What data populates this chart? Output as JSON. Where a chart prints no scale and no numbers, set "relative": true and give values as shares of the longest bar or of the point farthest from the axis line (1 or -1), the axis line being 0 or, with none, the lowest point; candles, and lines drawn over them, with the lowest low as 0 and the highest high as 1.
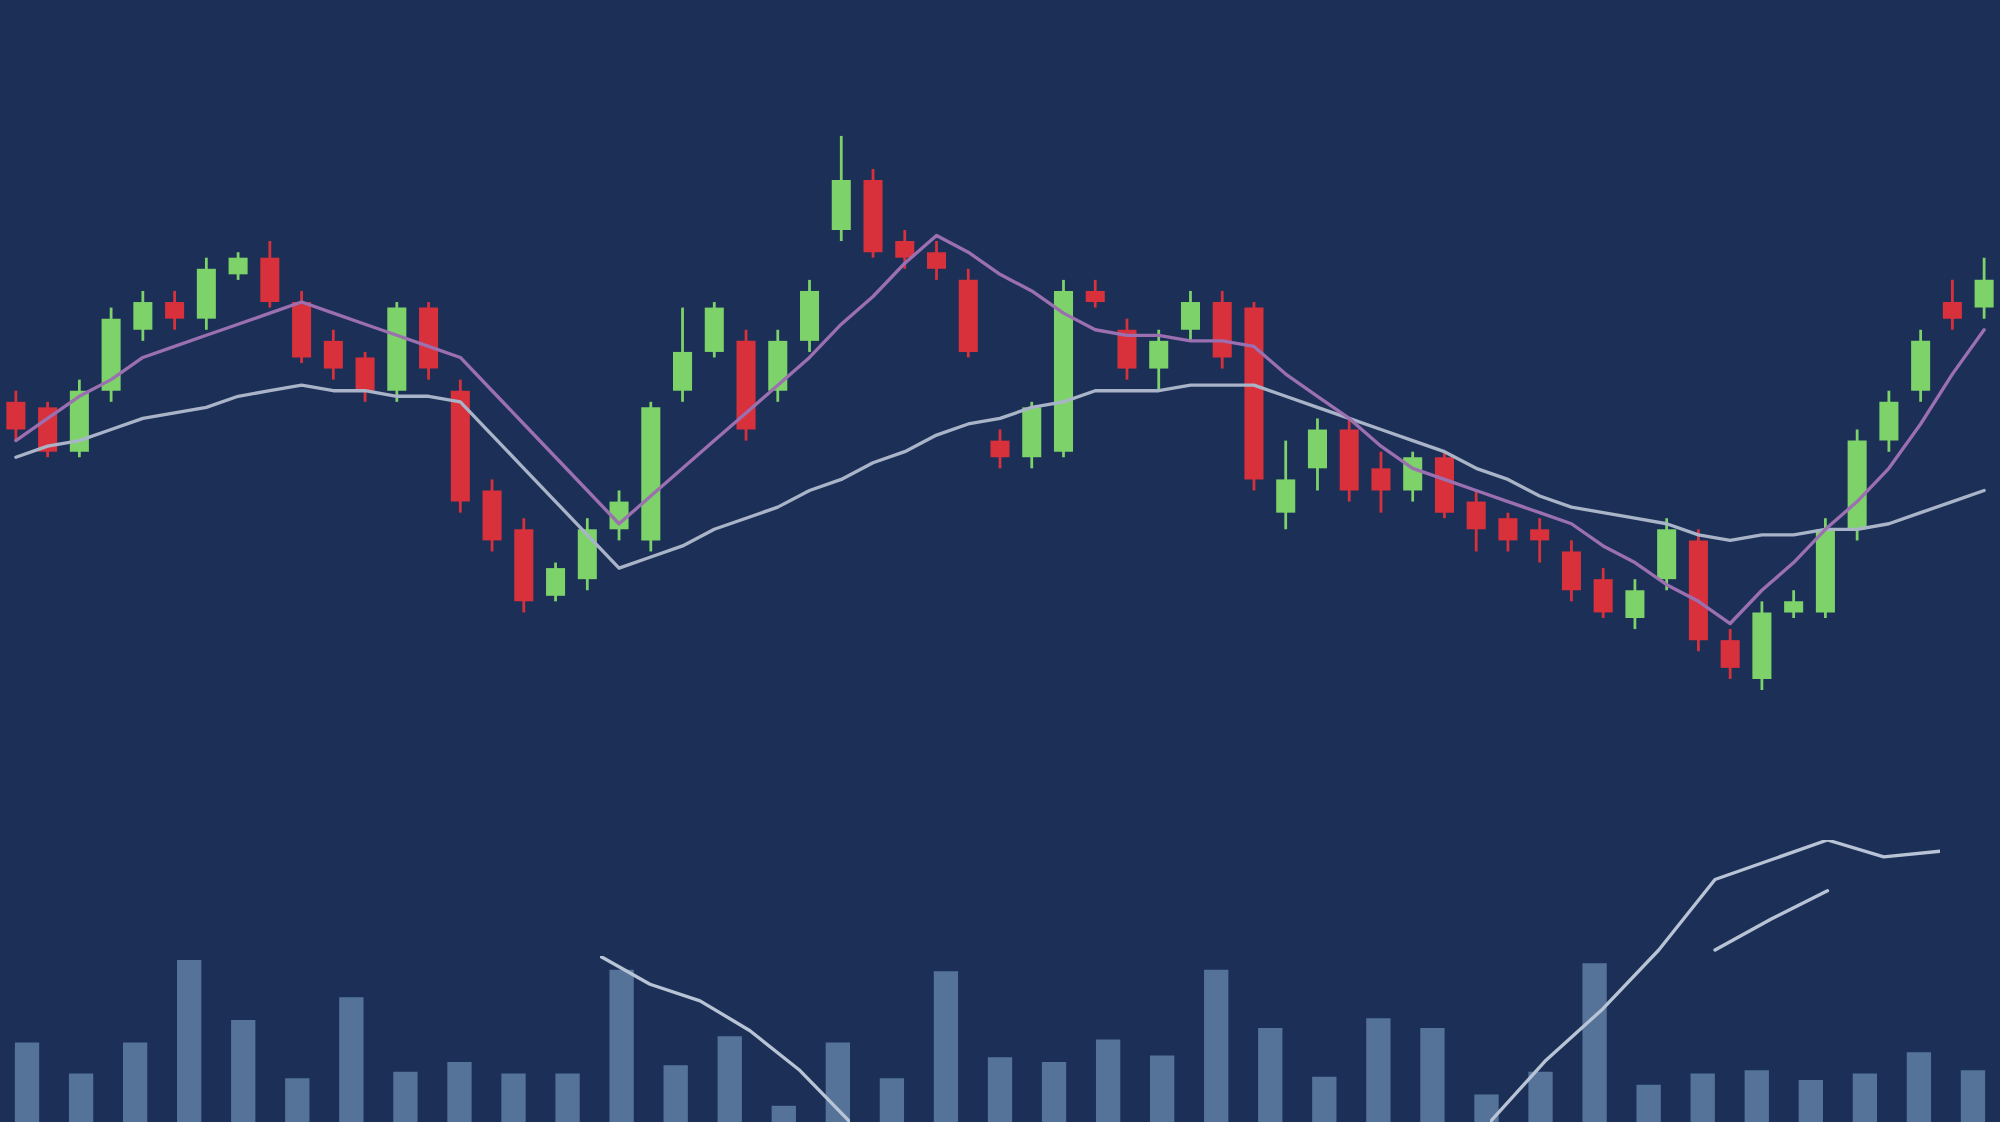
{
  "chart_data": [
    {
      "type": "candlestick",
      "relative": true,
      "categories": [
        null,
        null,
        null,
        null,
        null,
        null,
        null,
        null,
        null,
        null,
        null,
        null,
        null,
        null,
        null,
        null,
        null,
        null,
        null,
        null,
        null,
        null,
        null,
        null,
        null,
        null,
        null,
        null,
        null,
        null,
        null,
        null,
        null,
        null,
        null,
        null,
        null,
        null,
        null,
        null,
        null,
        null,
        null,
        null,
        null,
        null,
        null,
        null,
        null,
        null,
        null,
        null,
        null,
        null,
        null,
        null,
        null,
        null,
        null,
        null,
        null,
        null,
        null
      ],
      "ohlc": [
        [
          0.52,
          0.54,
          0.45,
          0.47
        ],
        [
          0.51,
          0.52,
          0.42,
          0.43
        ],
        [
          0.43,
          0.56,
          0.42,
          0.54
        ],
        [
          0.54,
          0.69,
          0.52,
          0.67
        ],
        [
          0.65,
          0.72,
          0.63,
          0.7
        ],
        [
          0.7,
          0.72,
          0.65,
          0.67
        ],
        [
          0.67,
          0.78,
          0.65,
          0.76
        ],
        [
          0.75,
          0.79,
          0.74,
          0.78
        ],
        [
          0.78,
          0.81,
          0.69,
          0.7
        ],
        [
          0.7,
          0.72,
          0.59,
          0.6
        ],
        [
          0.63,
          0.65,
          0.56,
          0.58
        ],
        [
          0.6,
          0.61,
          0.52,
          0.54
        ],
        [
          0.54,
          0.7,
          0.52,
          0.69
        ],
        [
          0.69,
          0.7,
          0.56,
          0.58
        ],
        [
          0.54,
          0.56,
          0.32,
          0.34
        ],
        [
          0.36,
          0.38,
          0.25,
          0.27
        ],
        [
          0.29,
          0.31,
          0.14,
          0.16
        ],
        [
          0.17,
          0.23,
          0.16,
          0.22
        ],
        [
          0.2,
          0.31,
          0.18,
          0.29
        ],
        [
          0.29,
          0.36,
          0.27,
          0.34
        ],
        [
          0.27,
          0.52,
          0.25,
          0.51
        ],
        [
          0.54,
          0.69,
          0.52,
          0.61
        ],
        [
          0.61,
          0.7,
          0.6,
          0.69
        ],
        [
          0.63,
          0.65,
          0.45,
          0.47
        ],
        [
          0.54,
          0.65,
          0.52,
          0.63
        ],
        [
          0.63,
          0.74,
          0.61,
          0.72
        ],
        [
          0.83,
          1.0,
          0.81,
          0.92
        ],
        [
          0.92,
          0.94,
          0.78,
          0.79
        ],
        [
          0.81,
          0.83,
          0.76,
          0.78
        ],
        [
          0.79,
          0.81,
          0.74,
          0.76
        ],
        [
          0.74,
          0.76,
          0.6,
          0.61
        ],
        [
          0.45,
          0.47,
          0.4,
          0.42
        ],
        [
          0.42,
          0.52,
          0.4,
          0.51
        ],
        [
          0.43,
          0.74,
          0.42,
          0.72
        ],
        [
          0.72,
          0.74,
          0.69,
          0.7
        ],
        [
          0.65,
          0.67,
          0.56,
          0.58
        ],
        [
          0.58,
          0.65,
          0.54,
          0.63
        ],
        [
          0.65,
          0.72,
          0.63,
          0.7
        ],
        [
          0.7,
          0.72,
          0.58,
          0.6
        ],
        [
          0.69,
          0.7,
          0.36,
          0.38
        ],
        [
          0.32,
          0.45,
          0.29,
          0.38
        ],
        [
          0.4,
          0.49,
          0.36,
          0.47
        ],
        [
          0.47,
          0.49,
          0.34,
          0.36
        ],
        [
          0.4,
          0.43,
          0.32,
          0.36
        ],
        [
          0.36,
          0.43,
          0.34,
          0.42
        ],
        [
          0.42,
          0.43,
          0.31,
          0.32
        ],
        [
          0.34,
          0.36,
          0.25,
          0.29
        ],
        [
          0.31,
          0.32,
          0.25,
          0.27
        ],
        [
          0.29,
          0.31,
          0.23,
          0.27
        ],
        [
          0.25,
          0.27,
          0.16,
          0.18
        ],
        [
          0.2,
          0.22,
          0.13,
          0.14
        ],
        [
          0.13,
          0.2,
          0.11,
          0.18
        ],
        [
          0.2,
          0.31,
          0.18,
          0.29
        ],
        [
          0.27,
          0.29,
          0.07,
          0.09
        ],
        [
          0.09,
          0.11,
          0.02,
          0.04
        ],
        [
          0.02,
          0.16,
          0.0,
          0.14
        ],
        [
          0.14,
          0.18,
          0.13,
          0.16
        ],
        [
          0.14,
          0.31,
          0.13,
          0.29
        ],
        [
          0.29,
          0.47,
          0.27,
          0.45
        ],
        [
          0.45,
          0.54,
          0.43,
          0.52
        ],
        [
          0.54,
          0.65,
          0.52,
          0.63
        ],
        [
          0.7,
          0.74,
          0.65,
          0.67
        ],
        [
          0.69,
          0.78,
          0.67,
          0.74
        ]
      ],
      "colors": [
        "#d8313c",
        "#d8313c",
        "#7dd36a",
        "#7dd36a",
        "#7dd36a",
        "#d8313c",
        "#7dd36a",
        "#7dd36a",
        "#d8313c",
        "#d8313c",
        "#d8313c",
        "#d8313c",
        "#7dd36a",
        "#d8313c",
        "#d8313c",
        "#d8313c",
        "#d8313c",
        "#7dd36a",
        "#7dd36a",
        "#7dd36a",
        "#7dd36a",
        "#7dd36a",
        "#7dd36a",
        "#d8313c",
        "#7dd36a",
        "#7dd36a",
        "#7dd36a",
        "#d8313c",
        "#d8313c",
        "#d8313c",
        "#d8313c",
        "#d8313c",
        "#7dd36a",
        "#7dd36a",
        "#d8313c",
        "#d8313c",
        "#7dd36a",
        "#7dd36a",
        "#d8313c",
        "#d8313c",
        "#7dd36a",
        "#7dd36a",
        "#d8313c",
        "#d8313c",
        "#7dd36a",
        "#d8313c",
        "#d8313c",
        "#d8313c",
        "#d8313c",
        "#d8313c",
        "#d8313c",
        "#7dd36a",
        "#7dd36a",
        "#d8313c",
        "#d8313c",
        "#7dd36a",
        "#7dd36a",
        "#7dd36a",
        "#7dd36a",
        "#7dd36a",
        "#7dd36a",
        "#d8313c",
        "#7dd36a"
      ],
      "series": [
        {
          "type": "line",
          "color": "#a9b4c8",
          "values": [
            0.42,
            0.44,
            0.45,
            0.47,
            0.49,
            0.5,
            0.51,
            0.53,
            0.54,
            0.55,
            0.54,
            0.54,
            0.53,
            0.53,
            0.52,
            0.46,
            0.4,
            0.34,
            0.28,
            0.22,
            0.24,
            0.26,
            0.29,
            0.31,
            0.33,
            0.36,
            0.38,
            0.41,
            0.43,
            0.46,
            0.48,
            0.49,
            0.51,
            0.52,
            0.54,
            0.54,
            0.54,
            0.55,
            0.55,
            0.55,
            0.53,
            0.51,
            0.49,
            0.47,
            0.45,
            0.43,
            0.4,
            0.38,
            0.35,
            0.33,
            0.32,
            0.31,
            0.3,
            0.28,
            0.27,
            0.28,
            0.28,
            0.29,
            0.29,
            0.3,
            0.32,
            0.34,
            0.36
          ]
        },
        {
          "type": "line",
          "color": "#9b6fb0",
          "values": [
            0.45,
            0.49,
            0.53,
            0.56,
            0.6,
            0.62,
            0.64,
            0.66,
            0.68,
            0.7,
            0.68,
            0.66,
            0.64,
            0.62,
            0.6,
            0.54,
            0.48,
            0.42,
            0.36,
            0.3,
            0.35,
            0.4,
            0.45,
            0.5,
            0.55,
            0.6,
            0.66,
            0.71,
            0.77,
            0.82,
            0.79,
            0.75,
            0.72,
            0.68,
            0.65,
            0.64,
            0.64,
            0.63,
            0.63,
            0.62,
            0.57,
            0.53,
            0.49,
            0.44,
            0.4,
            0.38,
            0.36,
            0.34,
            0.32,
            0.3,
            0.26,
            0.23,
            0.19,
            0.16,
            0.12,
            0.18,
            0.23,
            0.29,
            0.34,
            0.4,
            0.48,
            0.57,
            0.65
          ]
        }
      ]
    },
    {
      "type": "bar",
      "relative": true,
      "categories": [
        null,
        null,
        null,
        null,
        null,
        null,
        null,
        null,
        null,
        null,
        null,
        null,
        null,
        null,
        null,
        null,
        null,
        null,
        null,
        null,
        null,
        null,
        null,
        null,
        null,
        null,
        null,
        null,
        null,
        null,
        null,
        null,
        null,
        null,
        null,
        null,
        null
      ],
      "series": [
        {
          "type": "bar",
          "color": "#5f7fa3",
          "values": [
            0.49,
            0.3,
            0.49,
            1.0,
            0.63,
            0.27,
            0.77,
            0.31,
            0.37,
            0.3,
            0.3,
            0.94,
            0.35,
            0.53,
            0.1,
            0.49,
            0.27,
            0.93,
            0.4,
            0.37,
            0.51,
            0.41,
            0.94,
            0.58,
            0.28,
            0.64,
            0.58,
            0.17,
            0.31,
            0.98,
            0.23,
            0.3,
            0.32,
            0.26,
            0.3,
            0.43,
            0.32
          ]
        }
      ]
    },
    {
      "type": "line",
      "relative": true,
      "categories": [
        null,
        null,
        null,
        null,
        null,
        null
      ],
      "series": [
        {
          "type": "line",
          "color": "#b8c4d6",
          "values": [
            1.0,
            0.83,
            0.73,
            0.55,
            0.31,
            0.0
          ]
        }
      ]
    },
    {
      "type": "line",
      "relative": true,
      "categories": [
        null,
        null,
        null,
        null,
        null,
        null,
        null,
        null,
        null
      ],
      "series": [
        {
          "type": "line",
          "color": "#b8c4d6",
          "values": [
            0.0,
            0.22,
            0.4,
            0.61,
            0.86,
            0.93,
            1.0,
            0.94,
            0.96
          ]
        },
        {
          "type": "line",
          "color": "#b8c4d6",
          "values": [
            null,
            null,
            null,
            null,
            0.61,
            0.72,
            0.82,
            null,
            null
          ]
        }
      ]
    }
  ]
}
